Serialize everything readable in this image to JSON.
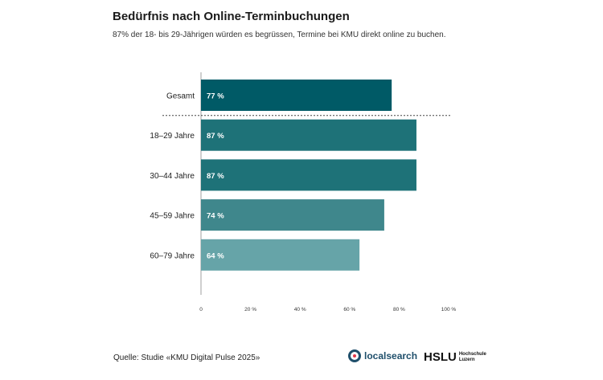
{
  "header": {
    "title": "Bedürfnis nach Online-Terminbuchungen",
    "subtitle": "87% der 18- bis 29-Jährigen würden es begrüssen, Termine bei KMU direkt online zu buchen."
  },
  "footer": {
    "source": "Quelle: Studie «KMU Digital Pulse 2025»",
    "logo_localsearch": "localsearch",
    "logo_hslu_main": "HSLU",
    "logo_hslu_line1": "Hochschule",
    "logo_hslu_line2": "Luzern"
  },
  "colors": {
    "bar_gesamt": "#005a66",
    "bar_18_29": "#1e7278",
    "bar_30_44": "#1e7278",
    "bar_45_59": "#3f878c",
    "bar_60_79": "#66a4a8",
    "separator": "#444444",
    "axis": "#888888"
  },
  "chart_data": {
    "type": "bar",
    "orientation": "horizontal",
    "categories": [
      "Gesamt",
      "18–29 Jahre",
      "30–44 Jahre",
      "45–59 Jahre",
      "60–79 Jahre"
    ],
    "values": [
      77,
      87,
      87,
      74,
      64
    ],
    "value_labels": [
      "77 %",
      "87 %",
      "87 %",
      "74 %",
      "64 %"
    ],
    "bar_colors": [
      "#005a66",
      "#1e7278",
      "#1e7278",
      "#3f878c",
      "#66a4a8"
    ],
    "xlim": [
      0,
      100
    ],
    "xticks": [
      0,
      20,
      40,
      60,
      80,
      100
    ],
    "xtick_labels": [
      "0",
      "20 %",
      "40 %",
      "60 %",
      "80 %",
      "100 %"
    ],
    "separator_after_category": "Gesamt",
    "grid": false
  }
}
